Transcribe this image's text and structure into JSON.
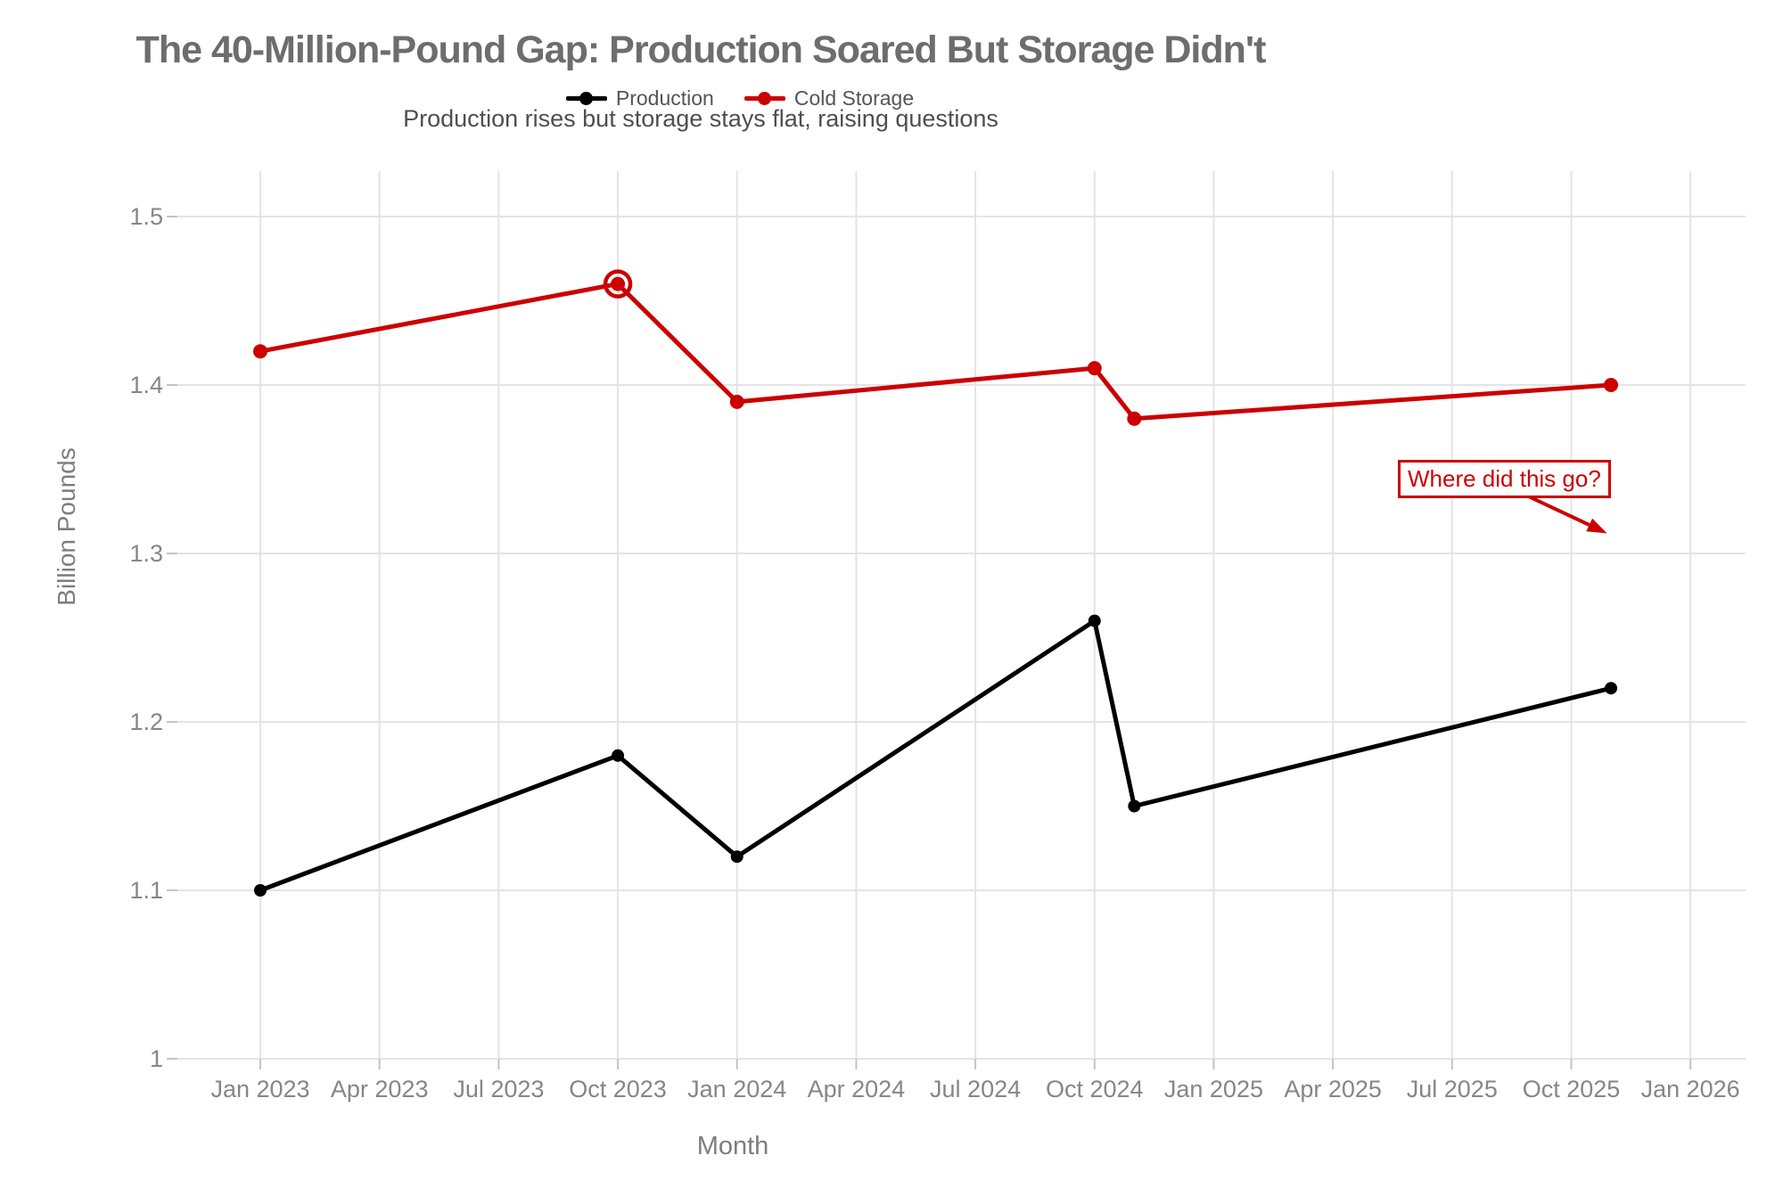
{
  "header": {
    "title": "The 40-Million-Pound Gap: Production Soared But Storage Didn't",
    "subtitle": "Production rises but storage stays flat, raising questions"
  },
  "legend": [
    {
      "label": "Production",
      "color_key": "production"
    },
    {
      "label": "Cold Storage",
      "color_key": "cold_storage"
    }
  ],
  "colors": {
    "production": "#000000",
    "cold_storage": "#cc0000",
    "annotation": "#cc0000",
    "grid": "#e4e4e4",
    "tick": "#c4c4c4",
    "tick_label": "#868686",
    "axis_title": "#7d7d7d",
    "title": "#6d6d6d",
    "subtitle": "#4f4f4f",
    "legend_text": "#555555",
    "background": "#ffffff"
  },
  "chart_data": {
    "type": "line",
    "title": "The 40-Million-Pound Gap: Production Soared But Storage Didn't",
    "subtitle": "Production rises but storage stays flat, raising questions",
    "xlabel": "Month",
    "ylabel": "Billion Pounds",
    "legend_position": "top-center",
    "grid": true,
    "ylim": [
      1.0,
      1.52
    ],
    "y_ticks": {
      "values": [
        1,
        1.1,
        1.2,
        1.3,
        1.4,
        1.5
      ],
      "labels": [
        "1",
        "1.1",
        "1.2",
        "1.3",
        "1.4",
        "1.5"
      ]
    },
    "x_ticks": {
      "month_index": [
        0,
        3,
        6,
        9,
        12,
        15,
        18,
        21,
        24,
        27,
        30,
        33,
        36
      ],
      "labels": [
        "Jan 2023",
        "Apr 2023",
        "Jul 2023",
        "Oct 2023",
        "Jan 2024",
        "Apr 2024",
        "Jul 2024",
        "Oct 2024",
        "Jan 2025",
        "Apr 2025",
        "Jul 2025",
        "Oct 2025",
        "Jan 2026"
      ]
    },
    "series": [
      {
        "name": "Production",
        "color_key": "production",
        "marker_radius": 7,
        "line_width": 5,
        "points": [
          {
            "month": "2023-01",
            "month_index": 0,
            "value": 1.1
          },
          {
            "month": "2023-10",
            "month_index": 9,
            "value": 1.18
          },
          {
            "month": "2024-01",
            "month_index": 12,
            "value": 1.12
          },
          {
            "month": "2024-10",
            "month_index": 21,
            "value": 1.26
          },
          {
            "month": "2024-11",
            "month_index": 22,
            "value": 1.15
          },
          {
            "month": "2025-11",
            "month_index": 34,
            "value": 1.22
          }
        ]
      },
      {
        "name": "Cold Storage",
        "color_key": "cold_storage",
        "marker_radius": 8,
        "line_width": 5,
        "points": [
          {
            "month": "2023-01",
            "month_index": 0,
            "value": 1.42
          },
          {
            "month": "2023-10",
            "month_index": 9,
            "value": 1.46
          },
          {
            "month": "2024-01",
            "month_index": 12,
            "value": 1.39
          },
          {
            "month": "2024-10",
            "month_index": 21,
            "value": 1.41
          },
          {
            "month": "2024-11",
            "month_index": 22,
            "value": 1.38
          },
          {
            "month": "2025-11",
            "month_index": 34,
            "value": 1.4
          }
        ],
        "highlight": {
          "month": "2023-10",
          "month_index": 9,
          "value": 1.46,
          "style": "ring"
        }
      }
    ],
    "annotation": {
      "text": "Where did this go?",
      "color_key": "annotation",
      "arrow_tip": {
        "month_index": 33.9,
        "value": 1.312
      }
    }
  }
}
